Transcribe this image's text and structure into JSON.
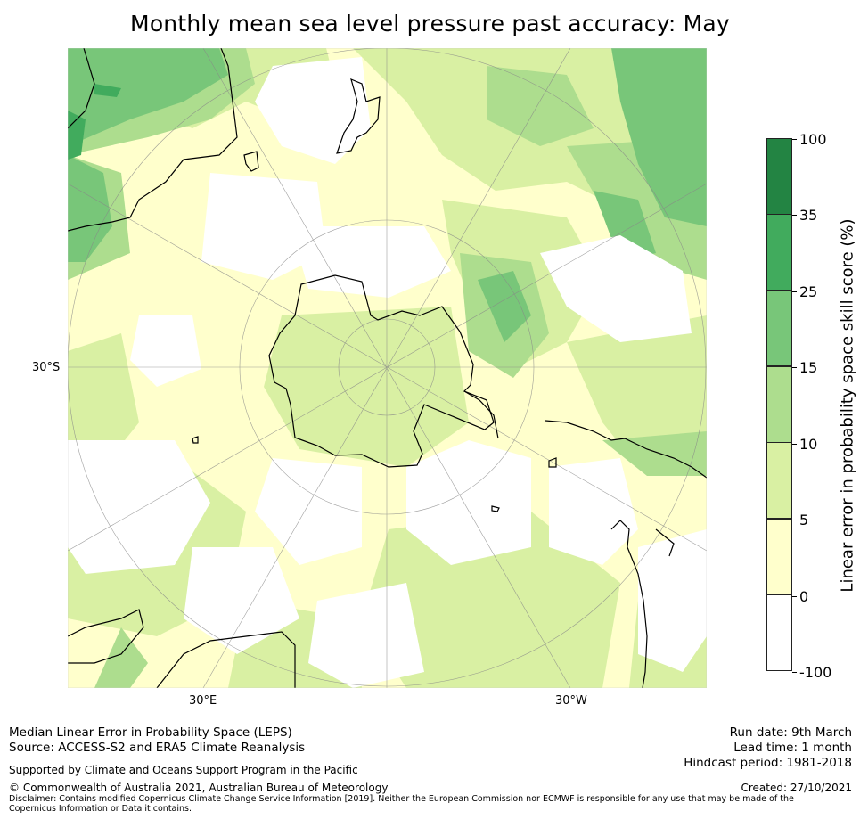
{
  "title": "Monthly mean sea level pressure past accuracy: May",
  "map": {
    "projection": "south-polar-stereographic",
    "lat_label": "30°S",
    "lon_labels": [
      "30°E",
      "30°W"
    ],
    "colors": {
      "ocean_background": "#ffffcc",
      "no_skill": "#ffffff",
      "land_outline": "#000000",
      "grid": "#888888"
    },
    "regions": [
      {
        "name": "New Zealand"
      },
      {
        "name": "Antarctica"
      },
      {
        "name": "South America"
      },
      {
        "name": "Australia"
      },
      {
        "name": "Africa"
      },
      {
        "name": "Falkland Islands"
      },
      {
        "name": "Kerguelen"
      }
    ]
  },
  "colorbar": {
    "label": "Linear error in probability space skill score (%)",
    "ticks": [
      "100",
      "35",
      "25",
      "15",
      "10",
      "5",
      "0",
      "-100"
    ],
    "bins": [
      {
        "range": "35 to 100",
        "color": "#238443"
      },
      {
        "range": "25 to 35",
        "color": "#41ab5d"
      },
      {
        "range": "15 to 25",
        "color": "#78c679"
      },
      {
        "range": "10 to 15",
        "color": "#addd8e"
      },
      {
        "range": "5 to 10",
        "color": "#d9f0a3"
      },
      {
        "range": "0 to 5",
        "color": "#ffffcc"
      },
      {
        "range": "-100 to 0",
        "color": "#ffffff"
      }
    ]
  },
  "footer": {
    "line1": "Median Linear Error in Probability Space (LEPS)",
    "line2": "Source: ACCESS-S2 and ERA5 Climate Reanalysis",
    "support": "Supported by Climate and Oceans Support Program in the Pacific",
    "copyright": "© Commonwealth of Australia 2021, Australian Bureau of Meteorology",
    "disclaimer": "Disclaimer: Contains modified Copernicus Climate Change Service Information [2019]. Neither the European Commission nor ECMWF is responsible for any use that may be made of the Copernicus Information or Data it contains.",
    "run_date": "Run date: 9th March",
    "lead_time": "Lead time: 1 month",
    "hindcast": "Hindcast period: 1981-2018",
    "created": "Created: 27/10/2021"
  }
}
